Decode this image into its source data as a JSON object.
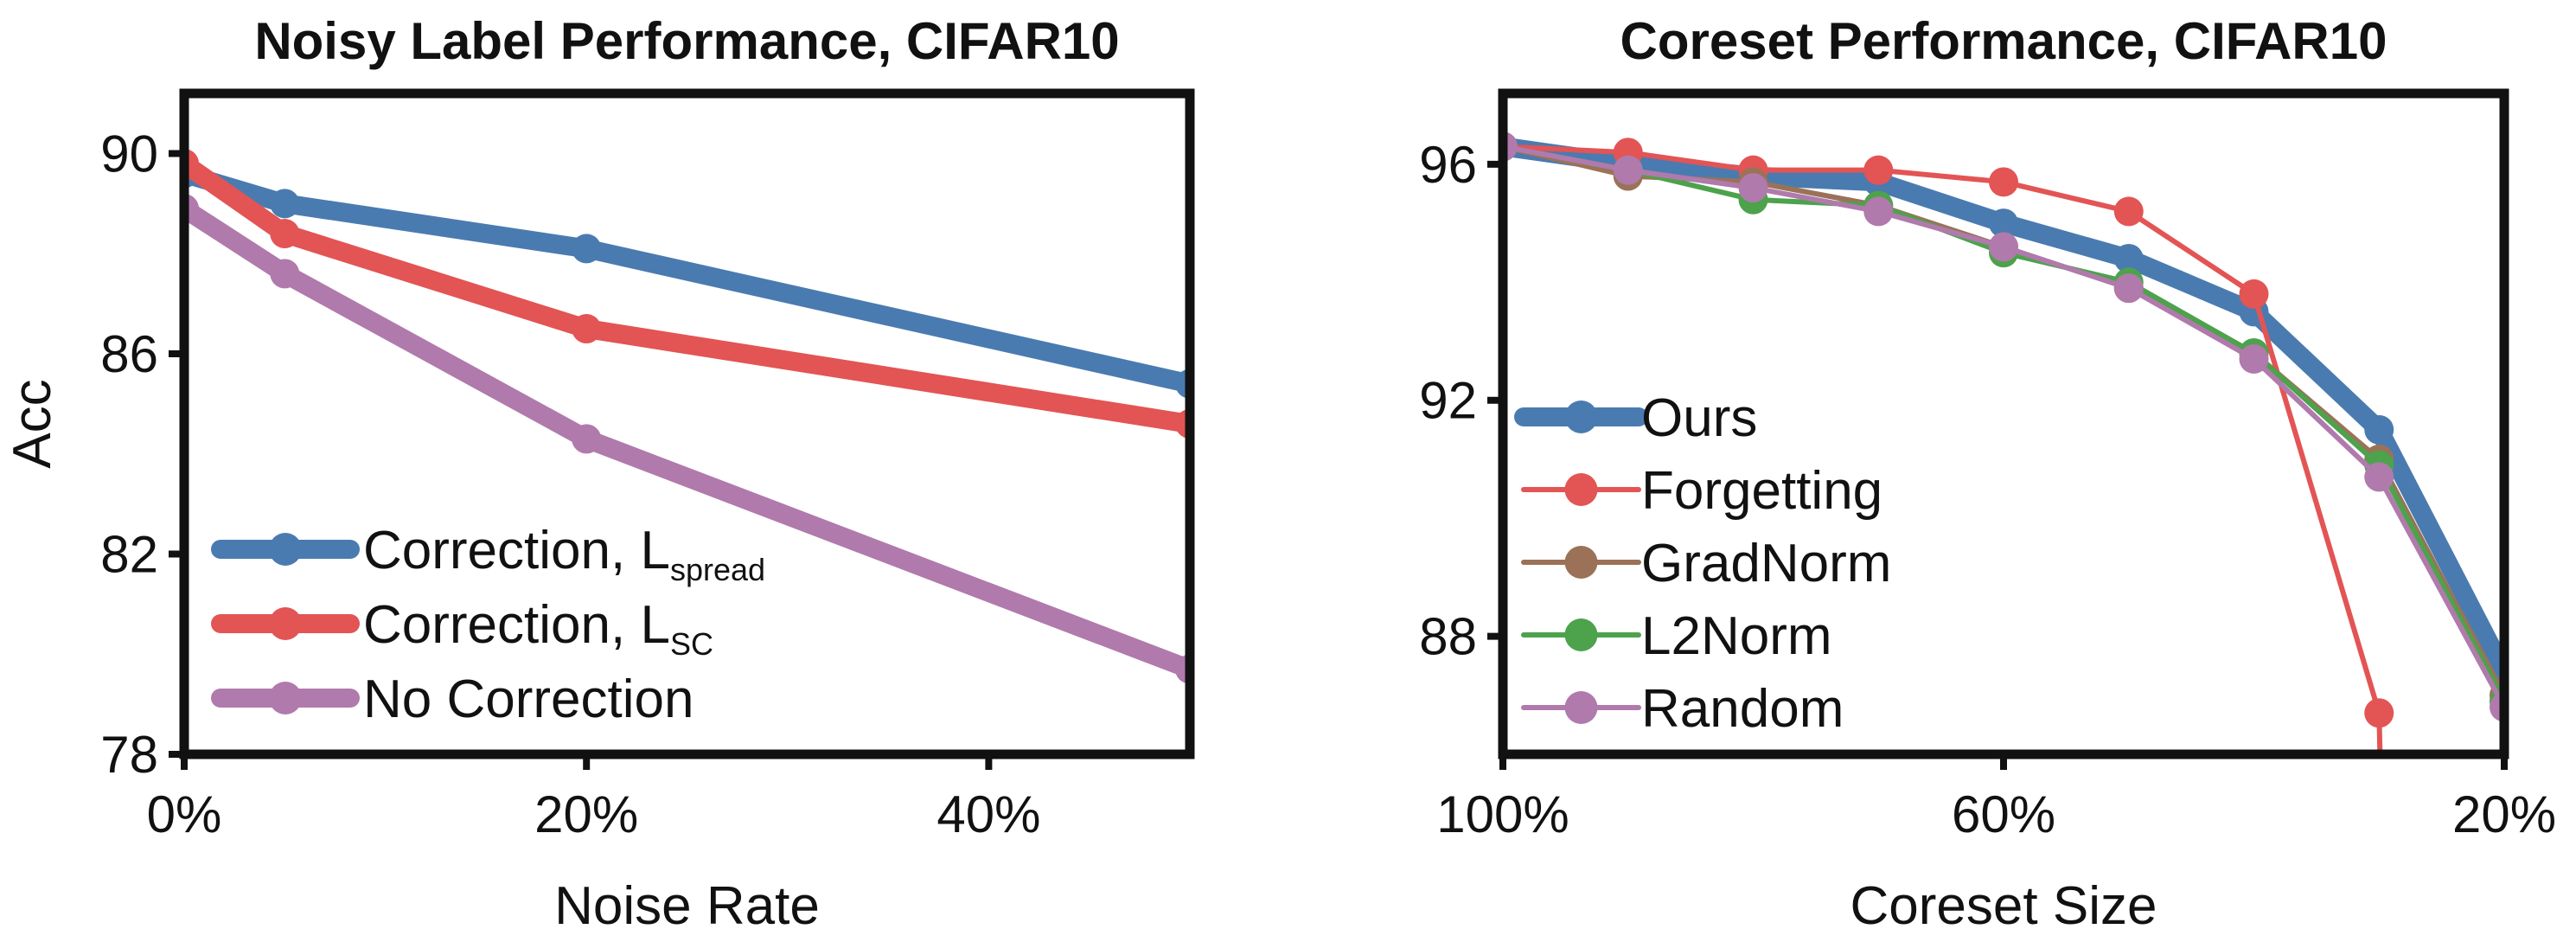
{
  "colors": {
    "blue": "#4a7bb0",
    "red": "#e35454",
    "purple": "#b07aac",
    "brown": "#9b7257",
    "green": "#4da24c",
    "axis": "#111111"
  },
  "chart_data": [
    {
      "type": "line",
      "title": "Noisy Label Performance, CIFAR10",
      "xlabel": "Noise Rate",
      "ylabel": "Acc",
      "xlim": [
        0,
        50
      ],
      "ylim": [
        78,
        91.2
      ],
      "x_ticks": [
        0,
        20,
        40
      ],
      "x_tick_labels": [
        "0%",
        "20%",
        "40%"
      ],
      "y_ticks": [
        78,
        82,
        86,
        90
      ],
      "y_tick_labels": [
        "78",
        "82",
        "86",
        "90"
      ],
      "legend_position": "bottom-left",
      "series": [
        {
          "name": "Correction, L",
          "subscript": "spread",
          "color_key": "blue",
          "x": [
            0,
            5,
            20,
            50
          ],
          "values": [
            89.6,
            89.0,
            88.1,
            85.4
          ]
        },
        {
          "name": "Correction, L",
          "subscript": "SC",
          "color_key": "red",
          "x": [
            0,
            5,
            20,
            50
          ],
          "values": [
            89.8,
            88.4,
            86.5,
            84.6
          ]
        },
        {
          "name": "No Correction",
          "subscript": "",
          "color_key": "purple",
          "x": [
            0,
            5,
            20,
            50
          ],
          "values": [
            88.9,
            87.6,
            84.3,
            79.7
          ]
        }
      ]
    },
    {
      "type": "line",
      "title": "Coreset Performance, CIFAR10",
      "xlabel": "Coreset Size",
      "ylabel": "",
      "xlim": [
        100,
        20
      ],
      "ylim": [
        86,
        97.2
      ],
      "x_ticks": [
        100,
        60,
        20
      ],
      "x_tick_labels": [
        "100%",
        "60%",
        "20%"
      ],
      "y_ticks": [
        88,
        92,
        96
      ],
      "y_tick_labels": [
        "88",
        "92",
        "96"
      ],
      "legend_position": "bottom-left",
      "series": [
        {
          "name": "Ours",
          "color_key": "blue",
          "x": [
            100,
            90,
            80,
            70,
            60,
            50,
            40,
            30,
            20
          ],
          "values": [
            96.3,
            96.0,
            95.8,
            95.7,
            95.0,
            94.4,
            93.5,
            91.5,
            87.4
          ]
        },
        {
          "name": "Forgetting",
          "color_key": "red",
          "x": [
            100,
            90,
            80,
            70,
            60,
            50,
            40,
            30
          ],
          "values": [
            96.3,
            96.2,
            95.9,
            95.9,
            95.7,
            95.2,
            93.8,
            86.7
          ]
        },
        {
          "name": "GradNorm",
          "color_key": "brown",
          "x": [
            100,
            90,
            80,
            70,
            60,
            50,
            40,
            30,
            20
          ],
          "values": [
            96.3,
            95.8,
            95.7,
            95.3,
            94.6,
            93.9,
            92.8,
            91.0,
            87.0
          ]
        },
        {
          "name": "L2Norm",
          "color_key": "green",
          "x": [
            100,
            90,
            80,
            70,
            60,
            50,
            40,
            30,
            20
          ],
          "values": [
            96.3,
            95.9,
            95.4,
            95.3,
            94.5,
            94.0,
            92.8,
            90.9,
            86.9
          ]
        },
        {
          "name": "Random",
          "color_key": "purple",
          "x": [
            100,
            90,
            80,
            70,
            60,
            50,
            40,
            30,
            20
          ],
          "values": [
            96.3,
            95.9,
            95.6,
            95.2,
            94.6,
            93.9,
            92.7,
            90.7,
            86.8
          ]
        }
      ]
    }
  ]
}
